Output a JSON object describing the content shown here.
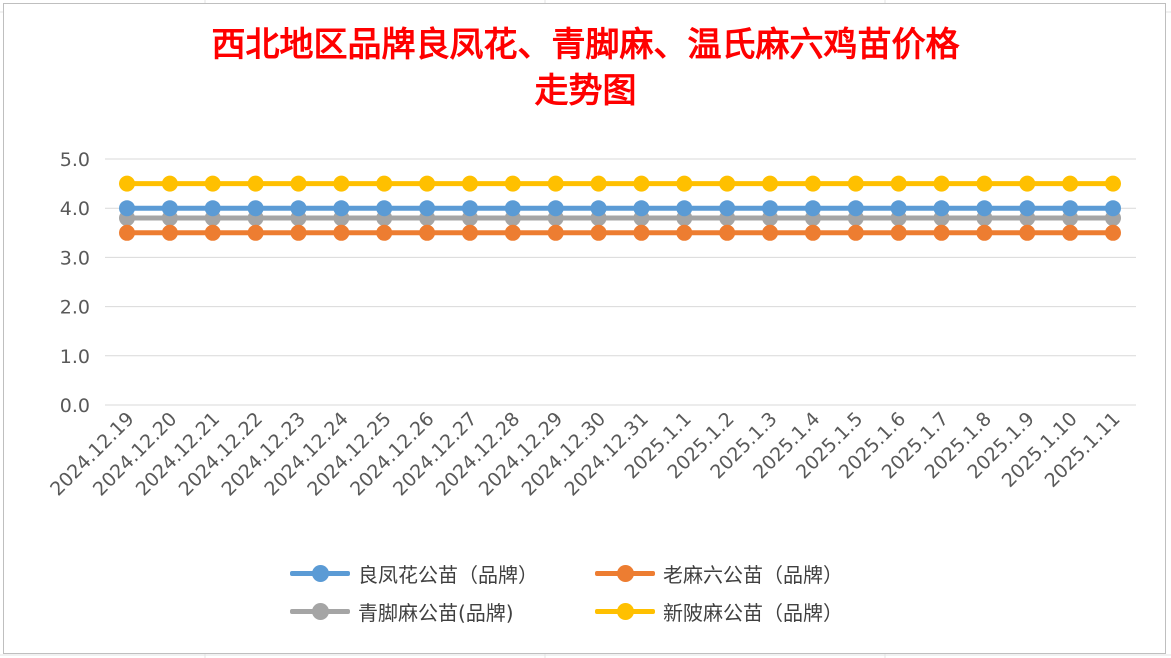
{
  "chart_data": {
    "type": "line",
    "title": "西北地区品牌良凤花、青脚麻、温氏麻六鸡苗价格走势图",
    "title_lines": [
      "西北地区品牌良凤花、青脚麻、温氏麻六鸡苗价格",
      "走势图"
    ],
    "categories": [
      "2024.12.19",
      "2024.12.20",
      "2024.12.21",
      "2024.12.22",
      "2024.12.23",
      "2024.12.24",
      "2024.12.25",
      "2024.12.26",
      "2024.12.27",
      "2024.12.28",
      "2024.12.29",
      "2024.12.30",
      "2024.12.31",
      "2025.1.1",
      "2025.1.2",
      "2025.1.3",
      "2025.1.4",
      "2025.1.5",
      "2025.1.6",
      "2025.1.7",
      "2025.1.8",
      "2025.1.9",
      "2025.1.10",
      "2025.1.11"
    ],
    "series": [
      {
        "name": "良凤花公苗（品牌）",
        "color": "#5b9bd5",
        "values": [
          4.0,
          4.0,
          4.0,
          4.0,
          4.0,
          4.0,
          4.0,
          4.0,
          4.0,
          4.0,
          4.0,
          4.0,
          4.0,
          4.0,
          4.0,
          4.0,
          4.0,
          4.0,
          4.0,
          4.0,
          4.0,
          4.0,
          4.0,
          4.0
        ]
      },
      {
        "name": "老麻六公苗（品牌）",
        "color": "#ed7d31",
        "values": [
          3.5,
          3.5,
          3.5,
          3.5,
          3.5,
          3.5,
          3.5,
          3.5,
          3.5,
          3.5,
          3.5,
          3.5,
          3.5,
          3.5,
          3.5,
          3.5,
          3.5,
          3.5,
          3.5,
          3.5,
          3.5,
          3.5,
          3.5,
          3.5
        ]
      },
      {
        "name": "青脚麻公苗(品牌)",
        "color": "#a5a5a5",
        "values": [
          3.8,
          3.8,
          3.8,
          3.8,
          3.8,
          3.8,
          3.8,
          3.8,
          3.8,
          3.8,
          3.8,
          3.8,
          3.8,
          3.8,
          3.8,
          3.8,
          3.8,
          3.8,
          3.8,
          3.8,
          3.8,
          3.8,
          3.8,
          3.8
        ]
      },
      {
        "name": "新陂麻公苗（品牌）",
        "color": "#ffc000",
        "values": [
          4.5,
          4.5,
          4.5,
          4.5,
          4.5,
          4.5,
          4.5,
          4.5,
          4.5,
          4.5,
          4.5,
          4.5,
          4.5,
          4.5,
          4.5,
          4.5,
          4.5,
          4.5,
          4.5,
          4.5,
          4.5,
          4.5,
          4.5,
          4.5
        ]
      }
    ],
    "draw_order": [
      2,
      0,
      1,
      3
    ],
    "ylim": [
      0,
      5
    ],
    "yticks": [
      "0.0",
      "1.0",
      "2.0",
      "3.0",
      "4.0",
      "5.0"
    ],
    "grid": true,
    "legend_position": "bottom",
    "xlabel": "",
    "ylabel": ""
  }
}
